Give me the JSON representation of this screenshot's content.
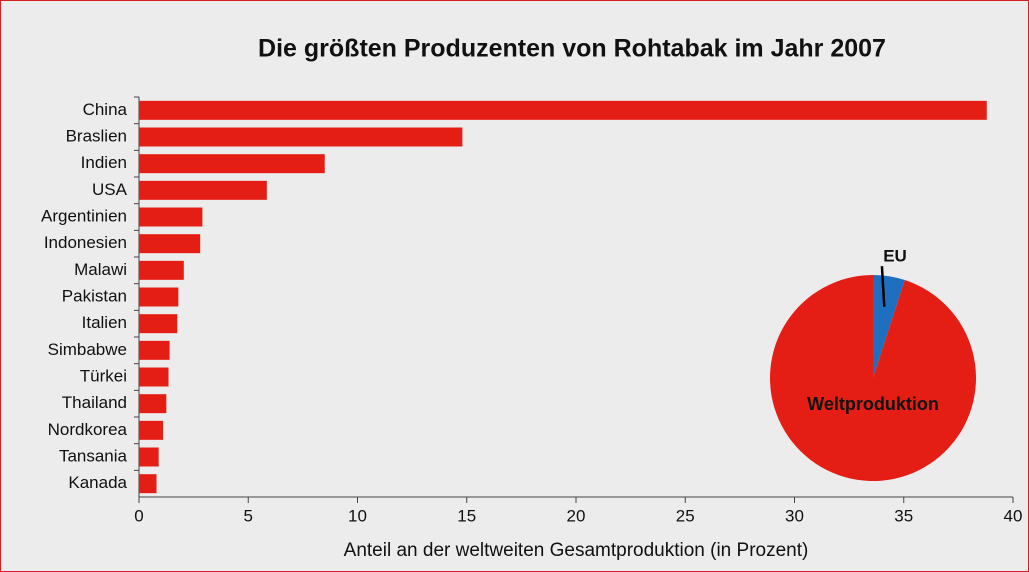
{
  "chart_data": [
    {
      "type": "bar",
      "orientation": "horizontal",
      "title": "Die größten Produzenten von Rohtabak im Jahr 2007",
      "xlabel": "Anteil an der weltweiten Gesamtproduktion (in Prozent)",
      "categories": [
        "China",
        "Braslien",
        "Indien",
        "USA",
        "Argentinien",
        "Indonesien",
        "Malawi",
        "Pakistan",
        "Italien",
        "Simbabwe",
        "Türkei",
        "Thailand",
        "Nordkorea",
        "Tansania",
        "Kanada"
      ],
      "values": [
        38.8,
        14.8,
        8.5,
        5.85,
        2.9,
        2.8,
        2.05,
        1.8,
        1.75,
        1.4,
        1.35,
        1.25,
        1.1,
        0.9,
        0.8
      ],
      "color": "#e41e14",
      "xlim": [
        0,
        40
      ],
      "xticks": [
        0,
        5,
        10,
        15,
        20,
        25,
        30,
        35,
        40
      ]
    },
    {
      "type": "pie",
      "categories": [
        "EU",
        "Weltproduktion"
      ],
      "values": [
        5,
        95
      ],
      "colors": [
        "#1f6fc0",
        "#e41e14"
      ]
    }
  ]
}
